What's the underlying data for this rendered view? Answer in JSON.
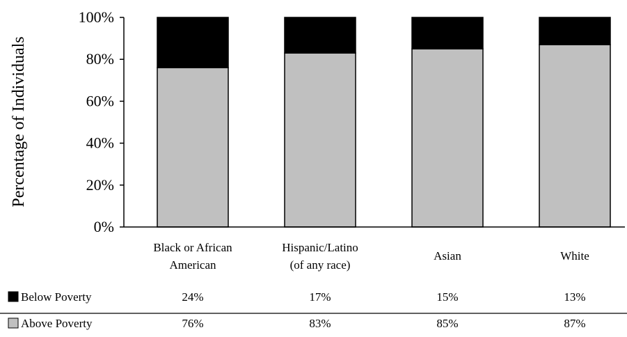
{
  "chart_data": {
    "type": "bar",
    "stacked": true,
    "ylabel": "Percentage of Individuals",
    "xlabel": "",
    "ylim": [
      0,
      100
    ],
    "y_ticks": [
      "0%",
      "20%",
      "40%",
      "60%",
      "80%",
      "100%"
    ],
    "categories": [
      [
        "Black or African",
        "American"
      ],
      [
        "Hispanic/Latino",
        "(of any race)"
      ],
      [
        "Asian"
      ],
      [
        "White"
      ]
    ],
    "series": [
      {
        "name": "Above Poverty",
        "color": "#c0c0c0",
        "values": [
          76,
          83,
          85,
          87
        ],
        "labels": [
          "76%",
          "83%",
          "85%",
          "87%"
        ]
      },
      {
        "name": "Below Poverty",
        "color": "#000000",
        "values": [
          24,
          17,
          15,
          13
        ],
        "labels": [
          "24%",
          "17%",
          "15%",
          "13%"
        ]
      }
    ],
    "legend": "data-table-below",
    "grid": false
  }
}
